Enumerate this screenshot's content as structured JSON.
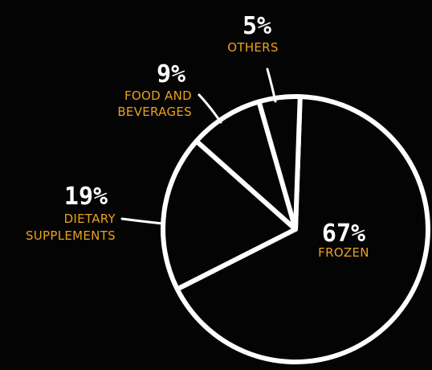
{
  "chart_data": {
    "type": "pie",
    "title": "",
    "legend": "none",
    "slices": [
      {
        "percent_label": "67%",
        "value": 67,
        "label_lines": [
          "FROZEN"
        ]
      },
      {
        "percent_label": "19%",
        "value": 19,
        "label_lines": [
          "DIETARY",
          "SUPPLEMENTS"
        ]
      },
      {
        "percent_label": "9%",
        "value": 9,
        "label_lines": [
          "FOOD AND",
          "BEVERAGES"
        ]
      },
      {
        "percent_label": "5%",
        "value": 5,
        "label_lines": [
          "OTHERS"
        ]
      }
    ],
    "colors": {
      "background": "#050404",
      "line": "#ffffff",
      "label": "#e8a21c"
    }
  }
}
